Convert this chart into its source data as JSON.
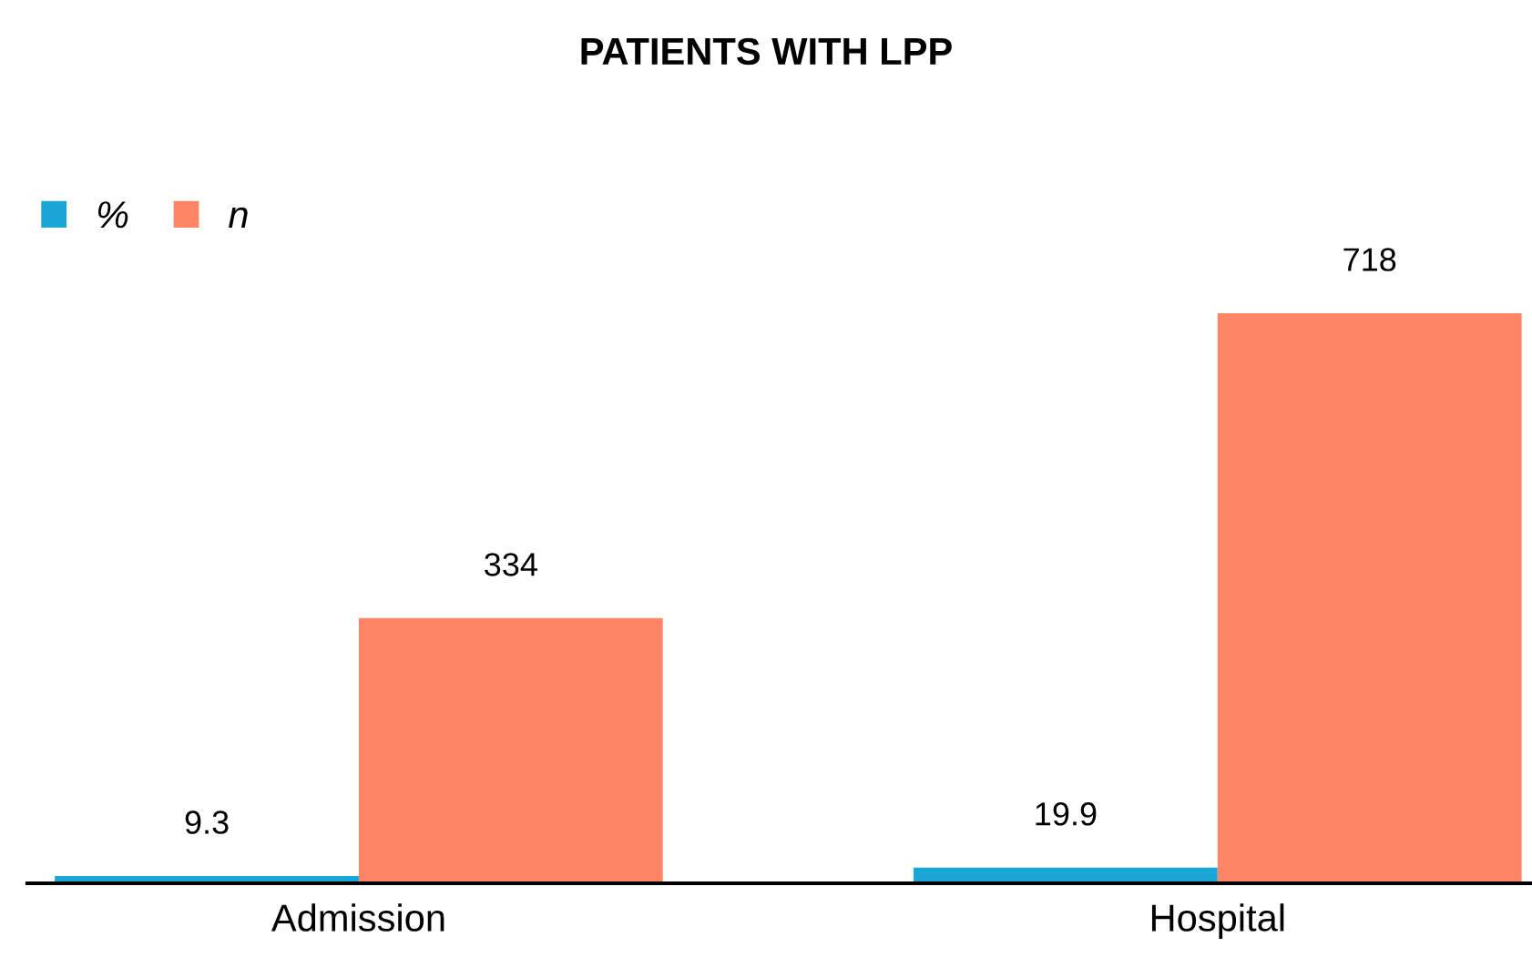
{
  "chart_data": {
    "type": "bar",
    "title": "PATIENTS WITH LPP",
    "categories": [
      "Admission",
      "Hospital"
    ],
    "series": [
      {
        "name": "%",
        "color": "#1aa7d8",
        "values": [
          9.3,
          19.9
        ]
      },
      {
        "name": "n",
        "color": "#ff8566",
        "values": [
          334,
          718
        ]
      }
    ],
    "data_labels": true,
    "legend": "top left",
    "tick_labels": "x",
    "grid": false
  }
}
